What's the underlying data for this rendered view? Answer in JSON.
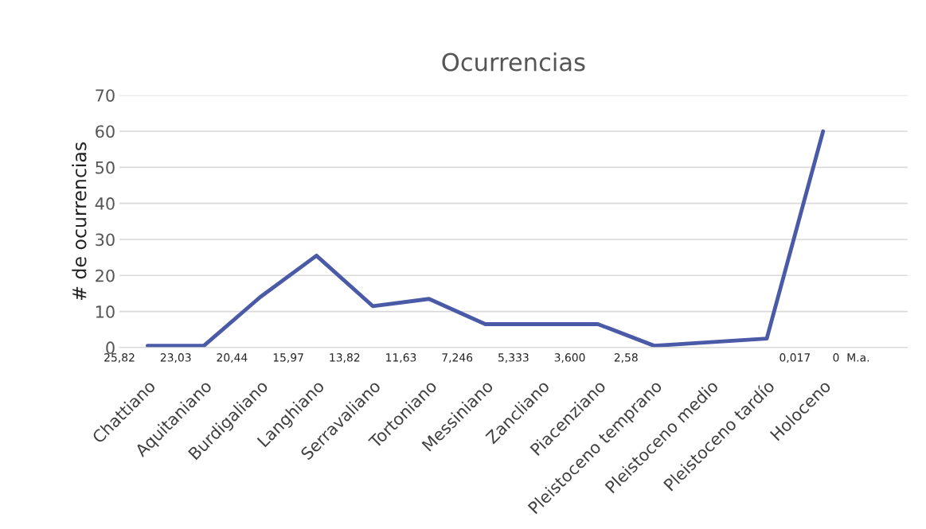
{
  "chart_data": {
    "type": "line",
    "title": "Ocurrencias",
    "ylabel": "# de ocurrencias",
    "categories": [
      "Chattiano",
      "Aquitaniano",
      "Burdigaliano",
      "Langhiano",
      "Serravaliano",
      "Tortoniano",
      "Messiniano",
      "Zancliano",
      "Piacenziano",
      "Pleistoceno temprano",
      "Pleistoceno medio",
      "Pleistoceno tardío",
      "Holoceno"
    ],
    "series": [
      {
        "color": "#4a5aa6",
        "values": [
          0.5,
          0.5,
          14,
          25.5,
          11.5,
          13.5,
          6.5,
          6.5,
          6.5,
          0.5,
          1.5,
          2.5,
          60
        ]
      }
    ],
    "ylim": [
      0,
      70
    ],
    "yticks": [
      0,
      10,
      20,
      30,
      40,
      50,
      60,
      70
    ],
    "annotations": [
      "25,82",
      "23,03",
      "20,44",
      "15,97",
      "13,82",
      "11,63",
      "7,246",
      "5,333",
      "3,600",
      "2,58",
      "0,017",
      "0  M.a."
    ],
    "grid": "y",
    "legend": false,
    "marker": "none",
    "line_style": "solid"
  }
}
